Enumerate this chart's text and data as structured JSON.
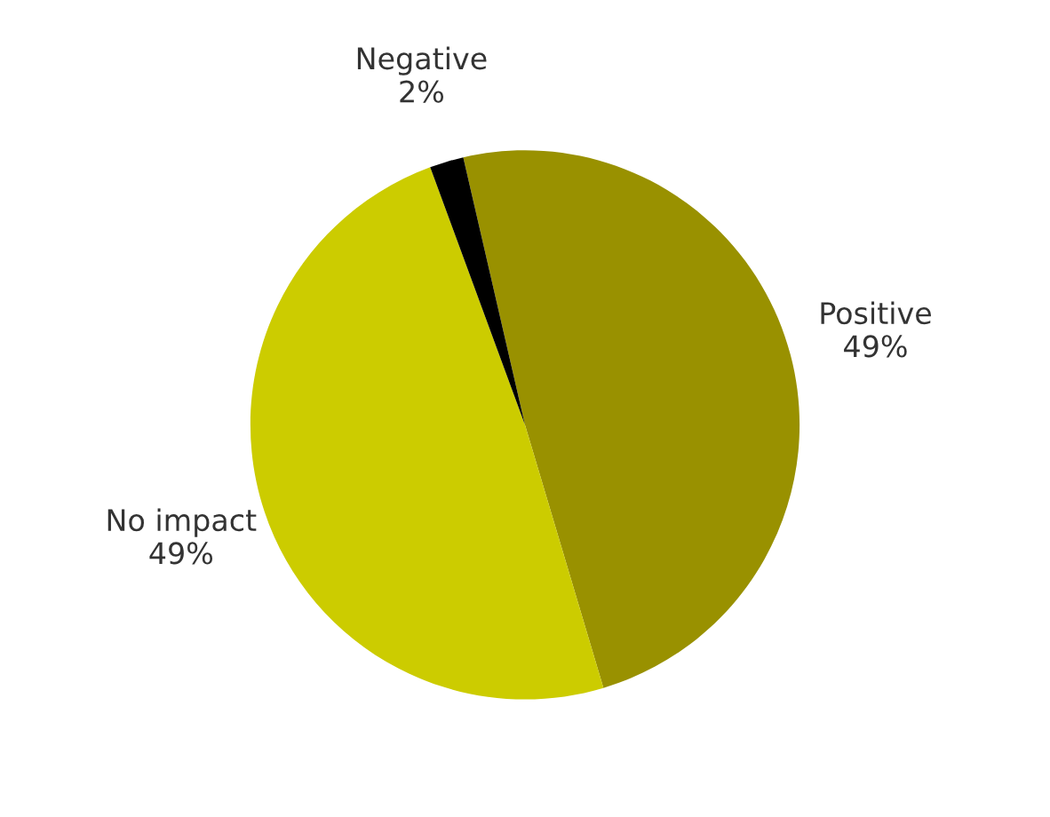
{
  "chart_data": {
    "type": "pie",
    "categories": [
      "Positive",
      "No impact",
      "Negative"
    ],
    "values": [
      49,
      49,
      2
    ],
    "value_labels": [
      "49%",
      "49%",
      "2%"
    ],
    "colors": [
      "#999100",
      "#cccc00",
      "#000000"
    ]
  }
}
